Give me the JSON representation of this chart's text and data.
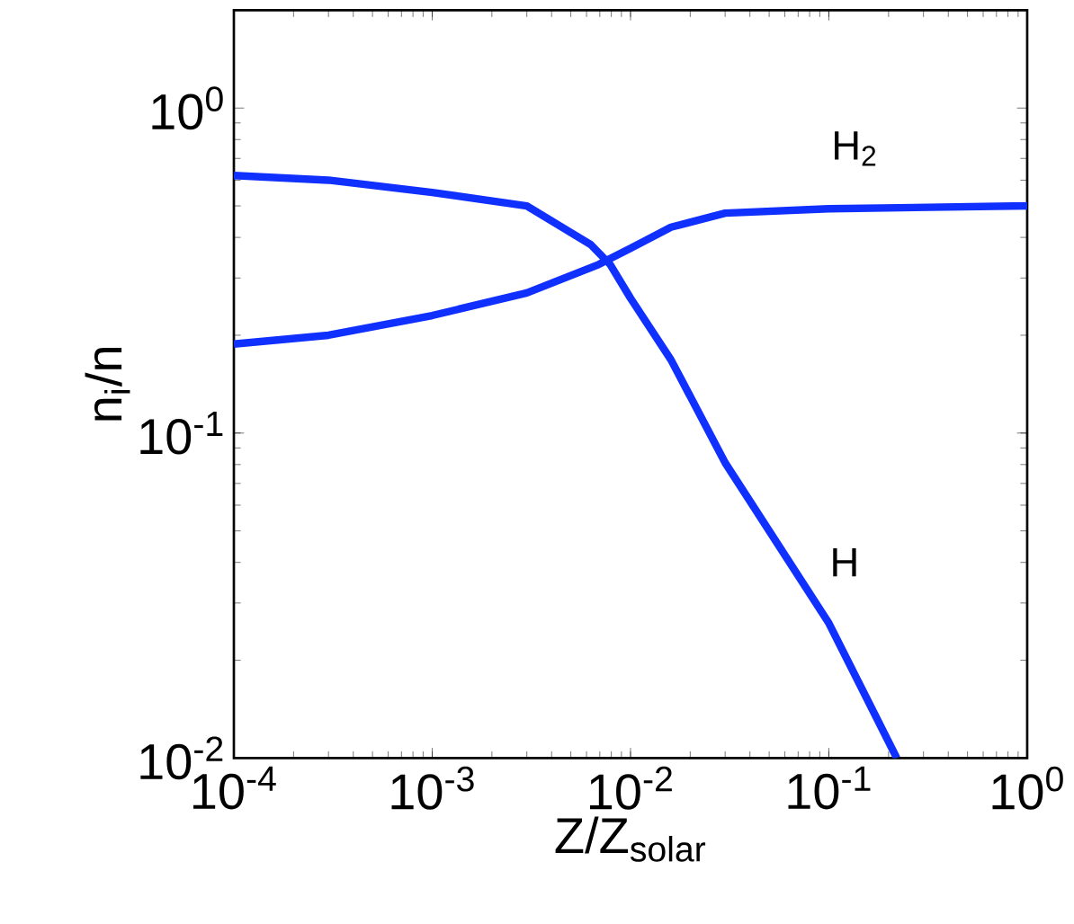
{
  "chart_data": {
    "type": "line",
    "xlabel": "Z/Z$_{solar}$",
    "ylabel": "n$_{i}$/n",
    "log": "xy",
    "xlim": [
      0.0001,
      1
    ],
    "ylim": [
      0.01,
      2
    ],
    "xticks": [
      {
        "value": 0.0001,
        "label": "10$^{-4}$"
      },
      {
        "value": 0.001,
        "label": "10$^{-3}$"
      },
      {
        "value": 0.01,
        "label": "10$^{-2}$"
      },
      {
        "value": 0.1,
        "label": "10$^{-1}$"
      },
      {
        "value": 1,
        "label": "10$^{0}$"
      }
    ],
    "yticks": [
      {
        "value": 0.01,
        "label": "10$^{-2}$"
      },
      {
        "value": 0.1,
        "label": "10$^{-1}$"
      },
      {
        "value": 1,
        "label": "10$^{0}$"
      }
    ],
    "series": [
      {
        "name": "H$_{2}$",
        "color": "#1030ff",
        "x": [
          0.0001,
          0.0003,
          0.001,
          0.003,
          0.0069,
          0.01,
          0.016,
          0.03,
          0.1,
          1
        ],
        "values": [
          0.188,
          0.2,
          0.23,
          0.27,
          0.33,
          0.37,
          0.43,
          0.475,
          0.49,
          0.5
        ]
      },
      {
        "name": "H",
        "color": "#1030ff",
        "x": [
          0.0001,
          0.0003,
          0.001,
          0.003,
          0.0063,
          0.0079,
          0.01,
          0.016,
          0.03,
          0.1,
          0.22
        ],
        "values": [
          0.62,
          0.6,
          0.55,
          0.5,
          0.38,
          0.33,
          0.26,
          0.168,
          0.081,
          0.026,
          0.01
        ]
      }
    ]
  }
}
